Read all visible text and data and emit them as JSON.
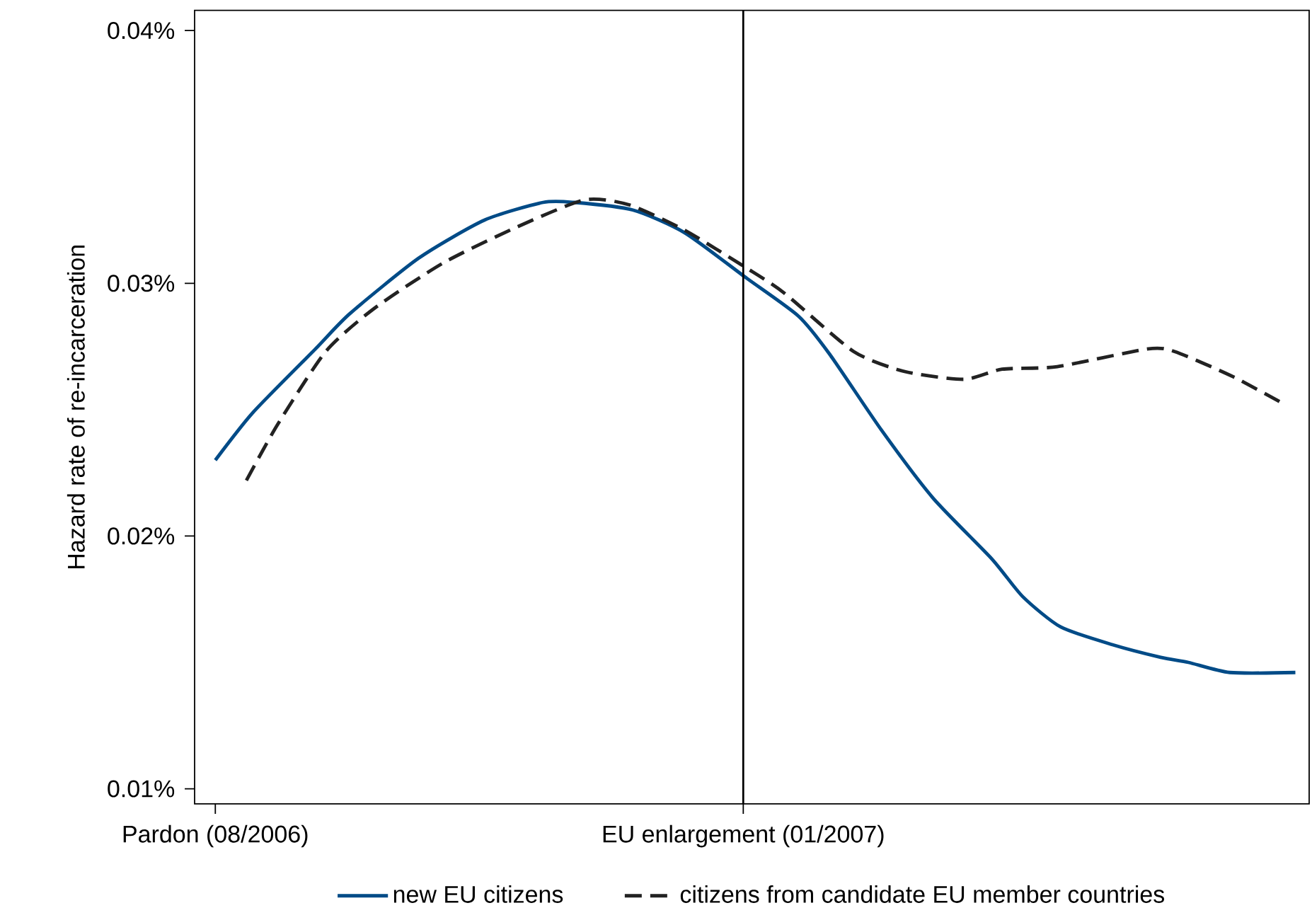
{
  "chart_data": {
    "type": "line",
    "ylabel": "Hazard rate of re-incarceration",
    "xlim": [
      "2006-07-26",
      "2007-06-14"
    ],
    "xticks": [
      {
        "value": "2006-08-01",
        "label": "Pardon (08/2006)"
      },
      {
        "value": "2007-01-01",
        "label": "EU enlargement (01/2007)"
      }
    ],
    "ylim": [
      0.0094,
      0.0408
    ],
    "yticks": [
      {
        "value": 0.01,
        "label": "0.01%"
      },
      {
        "value": 0.02,
        "label": "0.02%"
      },
      {
        "value": 0.03,
        "label": "0.03%"
      },
      {
        "value": 0.04,
        "label": "0.04%"
      }
    ],
    "ref_lines": [
      {
        "axis": "x",
        "value": "2007-01-01",
        "color": "#000000"
      }
    ],
    "grid": false,
    "legend": "bottom",
    "series": [
      {
        "name": "new EU citizens",
        "color": "#004b87",
        "line_style": "solid",
        "x": [
          "2006-08-01",
          "2006-08-12",
          "2006-08-30",
          "2006-09-09",
          "2006-09-29",
          "2006-10-18",
          "2006-11-04",
          "2006-11-13",
          "2006-11-30",
          "2006-12-15",
          "2007-01-02",
          "2007-01-17",
          "2007-01-26",
          "2007-02-10",
          "2007-02-25",
          "2007-03-14",
          "2007-03-23",
          "2007-04-03",
          "2007-04-18",
          "2007-05-02",
          "2007-05-10",
          "2007-05-22",
          "2007-06-10"
        ],
        "values": [
          0.023,
          0.0249,
          0.0274,
          0.0288,
          0.031,
          0.0325,
          0.0332,
          0.0332,
          0.0329,
          0.032,
          0.0302,
          0.0287,
          0.0272,
          0.0242,
          0.0215,
          0.0191,
          0.0176,
          0.0164,
          0.0157,
          0.0152,
          0.015,
          0.0146,
          0.0146
        ]
      },
      {
        "name": "citizens from candidate EU member countries",
        "color": "#222222",
        "line_style": "dashed",
        "x": [
          "2006-08-10",
          "2006-08-19",
          "2006-09-02",
          "2006-09-16",
          "2006-10-06",
          "2006-10-27",
          "2006-11-16",
          "2006-11-29",
          "2006-12-15",
          "2007-01-02",
          "2007-01-13",
          "2007-02-02",
          "2007-02-17",
          "2007-03-06",
          "2007-03-17",
          "2007-04-02",
          "2007-04-28",
          "2007-05-06",
          "2007-05-23",
          "2007-06-07"
        ],
        "values": [
          0.0222,
          0.0244,
          0.0273,
          0.029,
          0.0308,
          0.0322,
          0.0333,
          0.0331,
          0.0321,
          0.0306,
          0.0296,
          0.0273,
          0.0265,
          0.0262,
          0.0266,
          0.0267,
          0.0274,
          0.0273,
          0.0263,
          0.0252
        ]
      }
    ]
  }
}
